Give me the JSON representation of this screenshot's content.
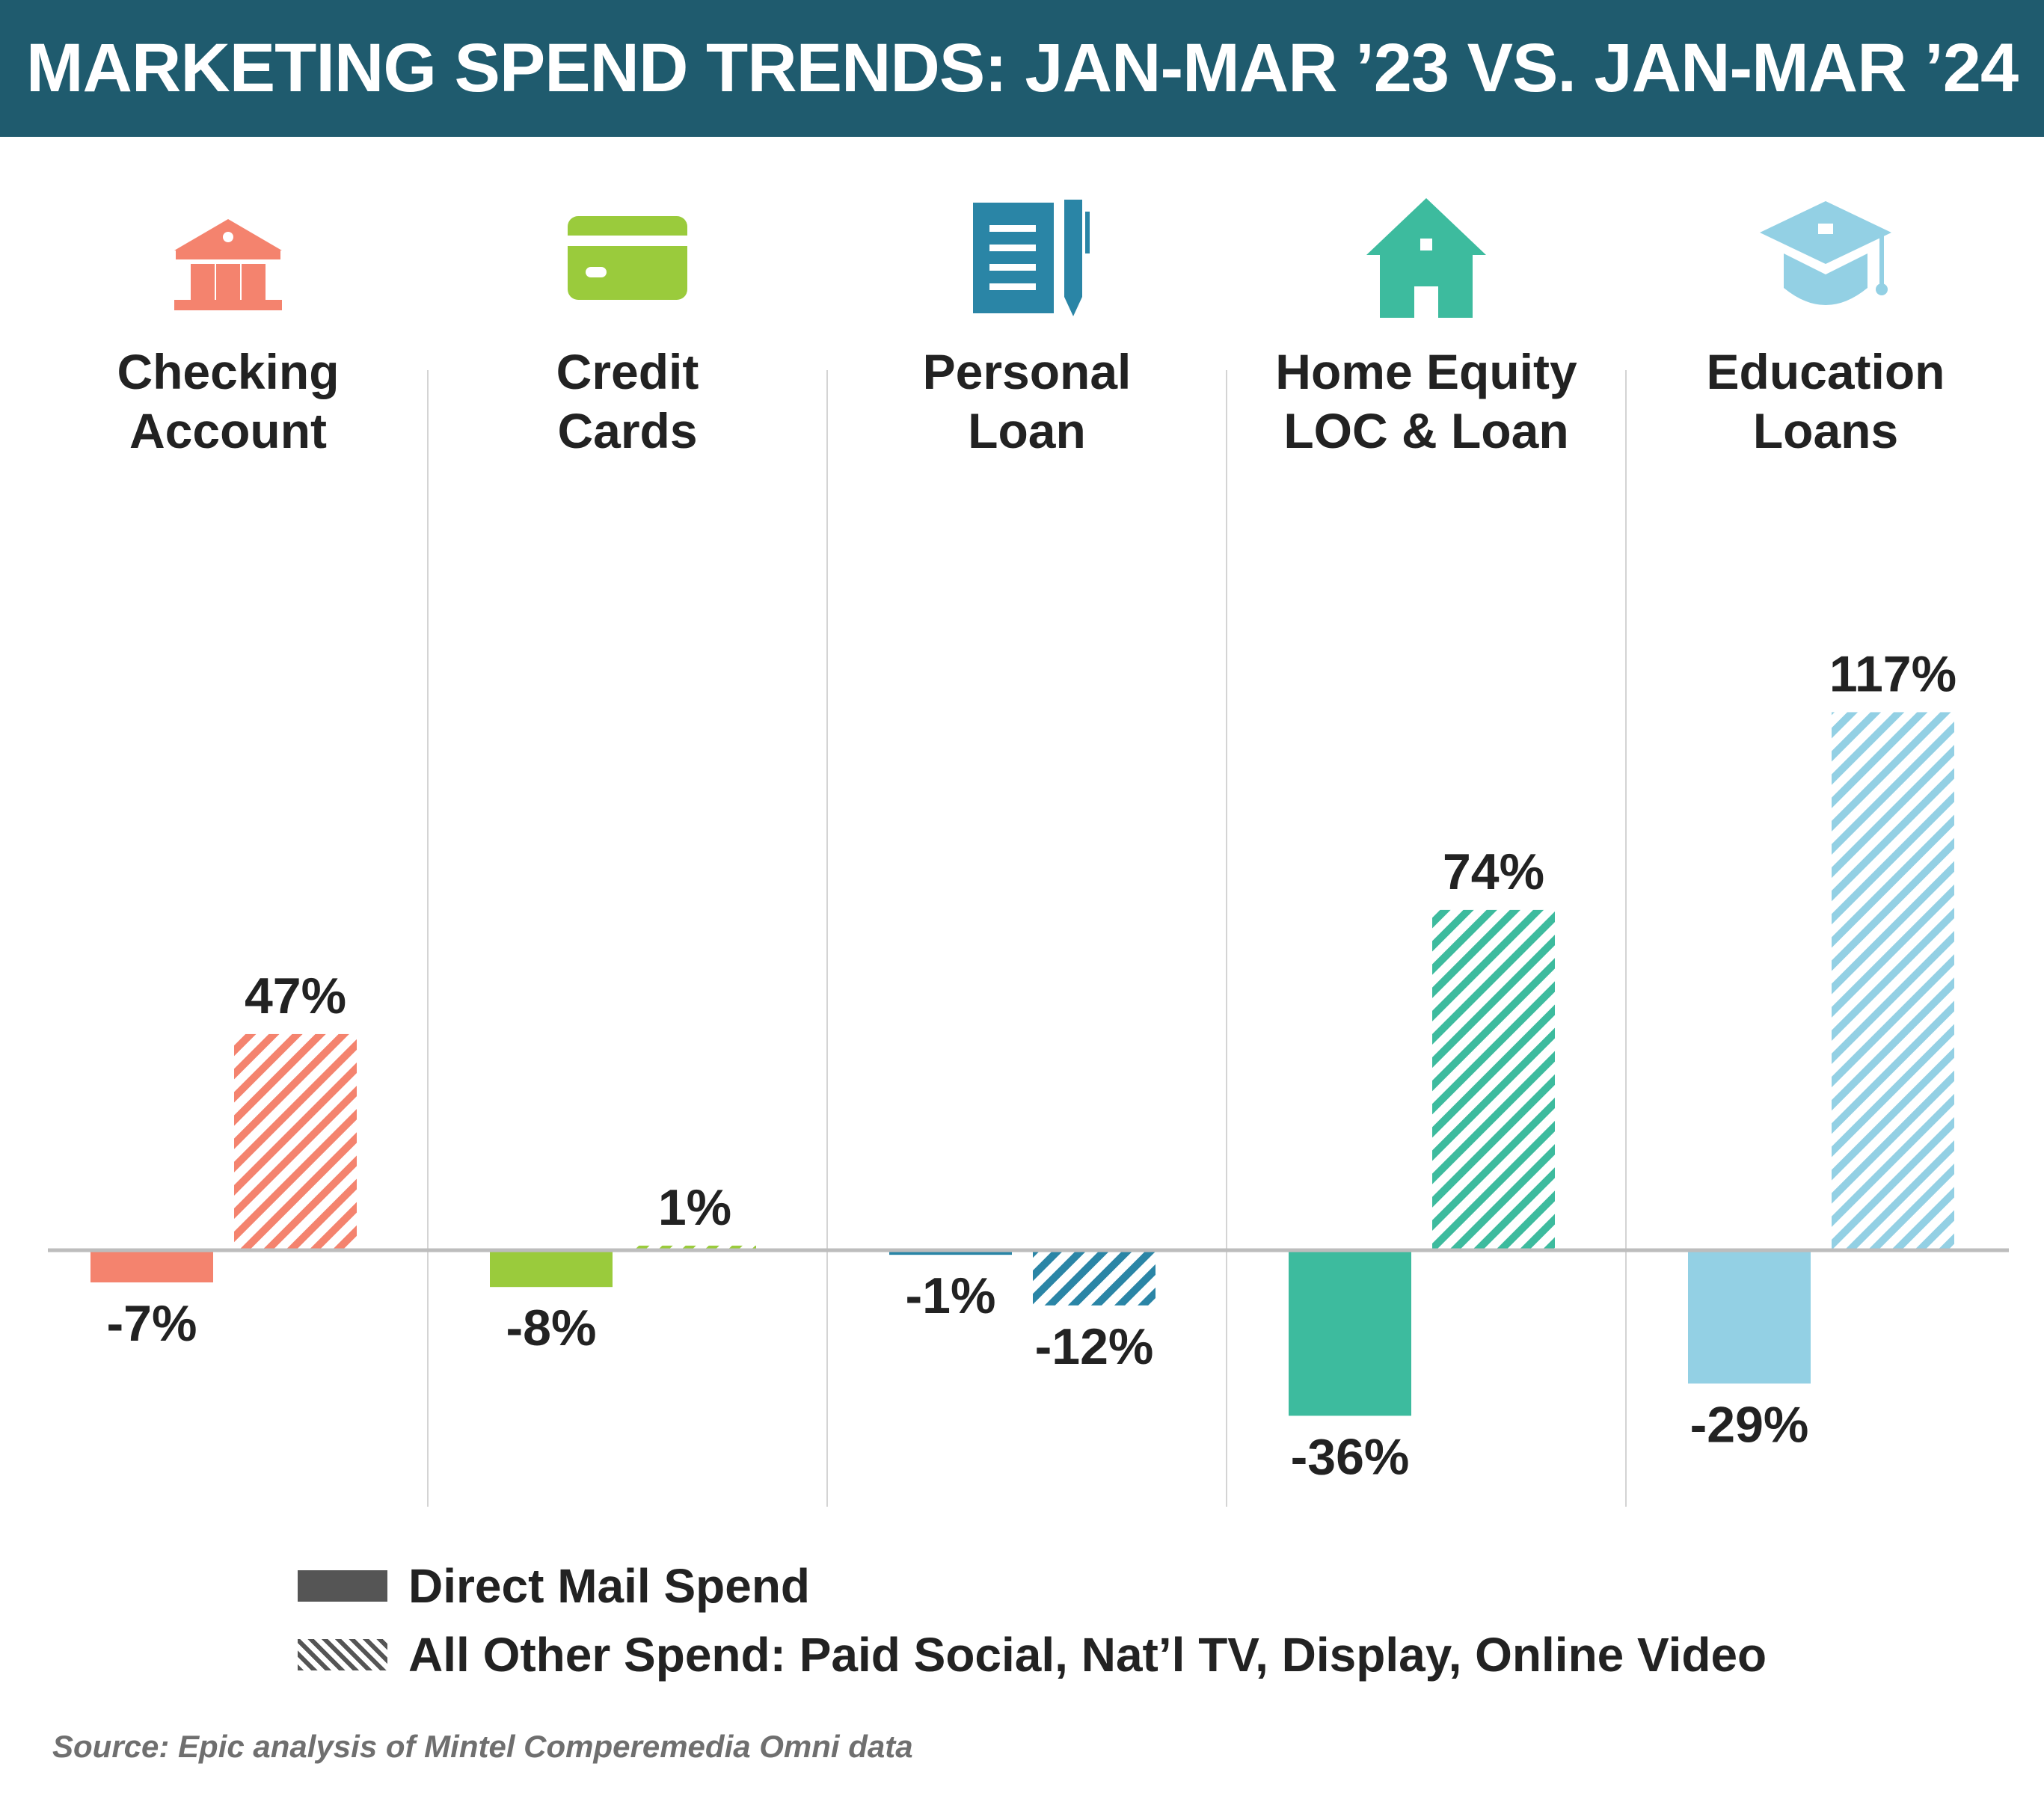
{
  "header": {
    "title": "MARKETING SPEND TRENDS: JAN-MAR ’23 VS. JAN-MAR ’24"
  },
  "chart_data": {
    "type": "bar",
    "title": "MARKETING SPEND TRENDS: JAN-MAR ’23 VS. JAN-MAR ’24",
    "categories": [
      {
        "name": "Checking Account",
        "lines": [
          "Checking",
          "Account"
        ],
        "icon": "bank-icon",
        "color": "#f4836e"
      },
      {
        "name": "Credit Cards",
        "lines": [
          "Credit",
          "Cards"
        ],
        "icon": "credit-card-icon",
        "color": "#9acb3c"
      },
      {
        "name": "Personal Loan",
        "lines": [
          "Personal",
          "Loan"
        ],
        "icon": "notepad-pen-icon",
        "color": "#2a85a6"
      },
      {
        "name": "Home Equity LOC & Loan",
        "lines": [
          "Home Equity",
          "LOC & Loan"
        ],
        "icon": "house-icon",
        "color": "#3dbb9e"
      },
      {
        "name": "Education Loans",
        "lines": [
          "Education",
          "Loans"
        ],
        "icon": "graduation-cap-icon",
        "color": "#93d0e4"
      }
    ],
    "series": [
      {
        "name": "Direct Mail Spend",
        "pattern": "solid",
        "values": [
          -7,
          -8,
          -1,
          -36,
          -29
        ],
        "labels": [
          "-7%",
          "-8%",
          "-1%",
          "-36%",
          "-29%"
        ]
      },
      {
        "name": "All Other Spend: Paid Social, Nat’l TV, Display, Online Video",
        "pattern": "hatched",
        "values": [
          47,
          1,
          -12,
          74,
          117
        ],
        "labels": [
          "47%",
          "1%",
          "-12%",
          "74%",
          "117%"
        ]
      }
    ],
    "unit": "%",
    "ylim": [
      -40,
      120
    ],
    "grid": false,
    "legend_position": "bottom"
  },
  "legend": {
    "items": [
      {
        "label": "Direct Mail Spend"
      },
      {
        "label": "All Other Spend: Paid Social, Nat’l TV, Display, Online Video"
      }
    ]
  },
  "source": "Source: Epic analysis of Mintel Comperemedia Omni data"
}
